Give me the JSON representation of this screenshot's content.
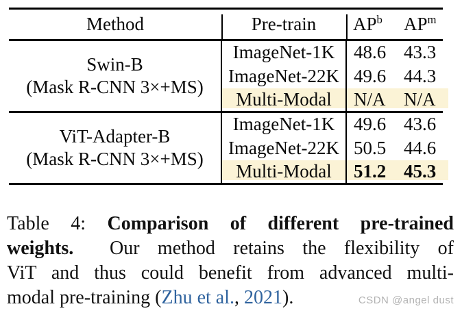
{
  "table": {
    "header": {
      "method": "Method",
      "pretrain": "Pre-train",
      "ap_b_base": "AP",
      "ap_b_sup": "b",
      "ap_m_base": "AP",
      "ap_m_sup": "m"
    },
    "groups": [
      {
        "method_line1": "Swin-B",
        "method_line2": "(Mask R-CNN 3×+MS)",
        "rows": [
          {
            "pretrain": "ImageNet-1K",
            "ap_b": "48.6",
            "ap_m": "43.3"
          },
          {
            "pretrain": "ImageNet-22K",
            "ap_b": "49.6",
            "ap_m": "44.3"
          },
          {
            "pretrain": "Multi-Modal",
            "ap_b": "N/A",
            "ap_m": "N/A"
          }
        ]
      },
      {
        "method_line1": "ViT-Adapter-B",
        "method_line2": "(Mask R-CNN 3×+MS)",
        "rows": [
          {
            "pretrain": "ImageNet-1K",
            "ap_b": "49.6",
            "ap_m": "43.6"
          },
          {
            "pretrain": "ImageNet-22K",
            "ap_b": "50.5",
            "ap_m": "44.6"
          },
          {
            "pretrain": "Multi-Modal",
            "ap_b": "51.2",
            "ap_m": "45.3"
          }
        ]
      }
    ]
  },
  "caption": {
    "line1_normal": "Table 4: ",
    "line1_bold": "Comparison of different pre-trained",
    "line2_bold": "weights.",
    "line2_normal": "  Our method retains the flexibility of",
    "line3": "ViT and thus could benefit from advanced multi-",
    "line4_pre": "modal pre-training (",
    "line4_link1": "Zhu et al.",
    "line4_mid": ", ",
    "line4_link2": "2021",
    "line4_post": ")."
  },
  "watermark": "CSDN @angel dust",
  "colors": {
    "highlight": "#FBF3D6",
    "citation_link": "#2F639E",
    "watermark": "#B3B3B3"
  }
}
